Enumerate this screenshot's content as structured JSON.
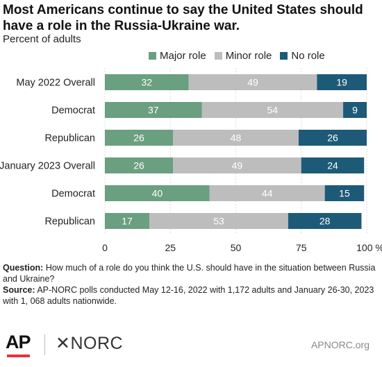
{
  "chart_data": {
    "type": "bar",
    "orientation": "horizontal",
    "stacked": true,
    "title": "Most Americans continue to say the United States should have a role in the Russia-Ukraine war.",
    "subtitle": "Percent of adults",
    "categories": [
      "May  2022 Overall",
      "Democrat",
      "Republican",
      "January 2023 Overall",
      "Democrat",
      "Republican"
    ],
    "series": [
      {
        "name": "Major role",
        "color": "#6a9f80",
        "values": [
          32,
          37,
          26,
          26,
          40,
          17
        ]
      },
      {
        "name": "Minor role",
        "color": "#bdbdbd",
        "values": [
          49,
          54,
          48,
          49,
          44,
          53
        ]
      },
      {
        "name": "No role",
        "color": "#1d5a78",
        "values": [
          19,
          9,
          26,
          24,
          15,
          28
        ]
      }
    ],
    "xlim": [
      0,
      100
    ],
    "xticks": [
      "0",
      "25",
      "50",
      "75",
      "100 %"
    ],
    "xtick_values": [
      0,
      25,
      50,
      75,
      100
    ],
    "grid": true,
    "legend_position": "top-right"
  },
  "notes": {
    "question_label": "Question:",
    "question_text": " How much of a role do you think the U.S. should have in the situation between Russia and Ukraine?",
    "source_label": "Source:",
    "source_text": " AP-NORC polls conducted May 12-16, 2022 with 1,172 adults and January 26-30, 2023 with 1, 068 adults nationwide."
  },
  "footer": {
    "ap_logo": "AP",
    "norc_logo": "✕NORC",
    "site": "APNORC.org"
  }
}
